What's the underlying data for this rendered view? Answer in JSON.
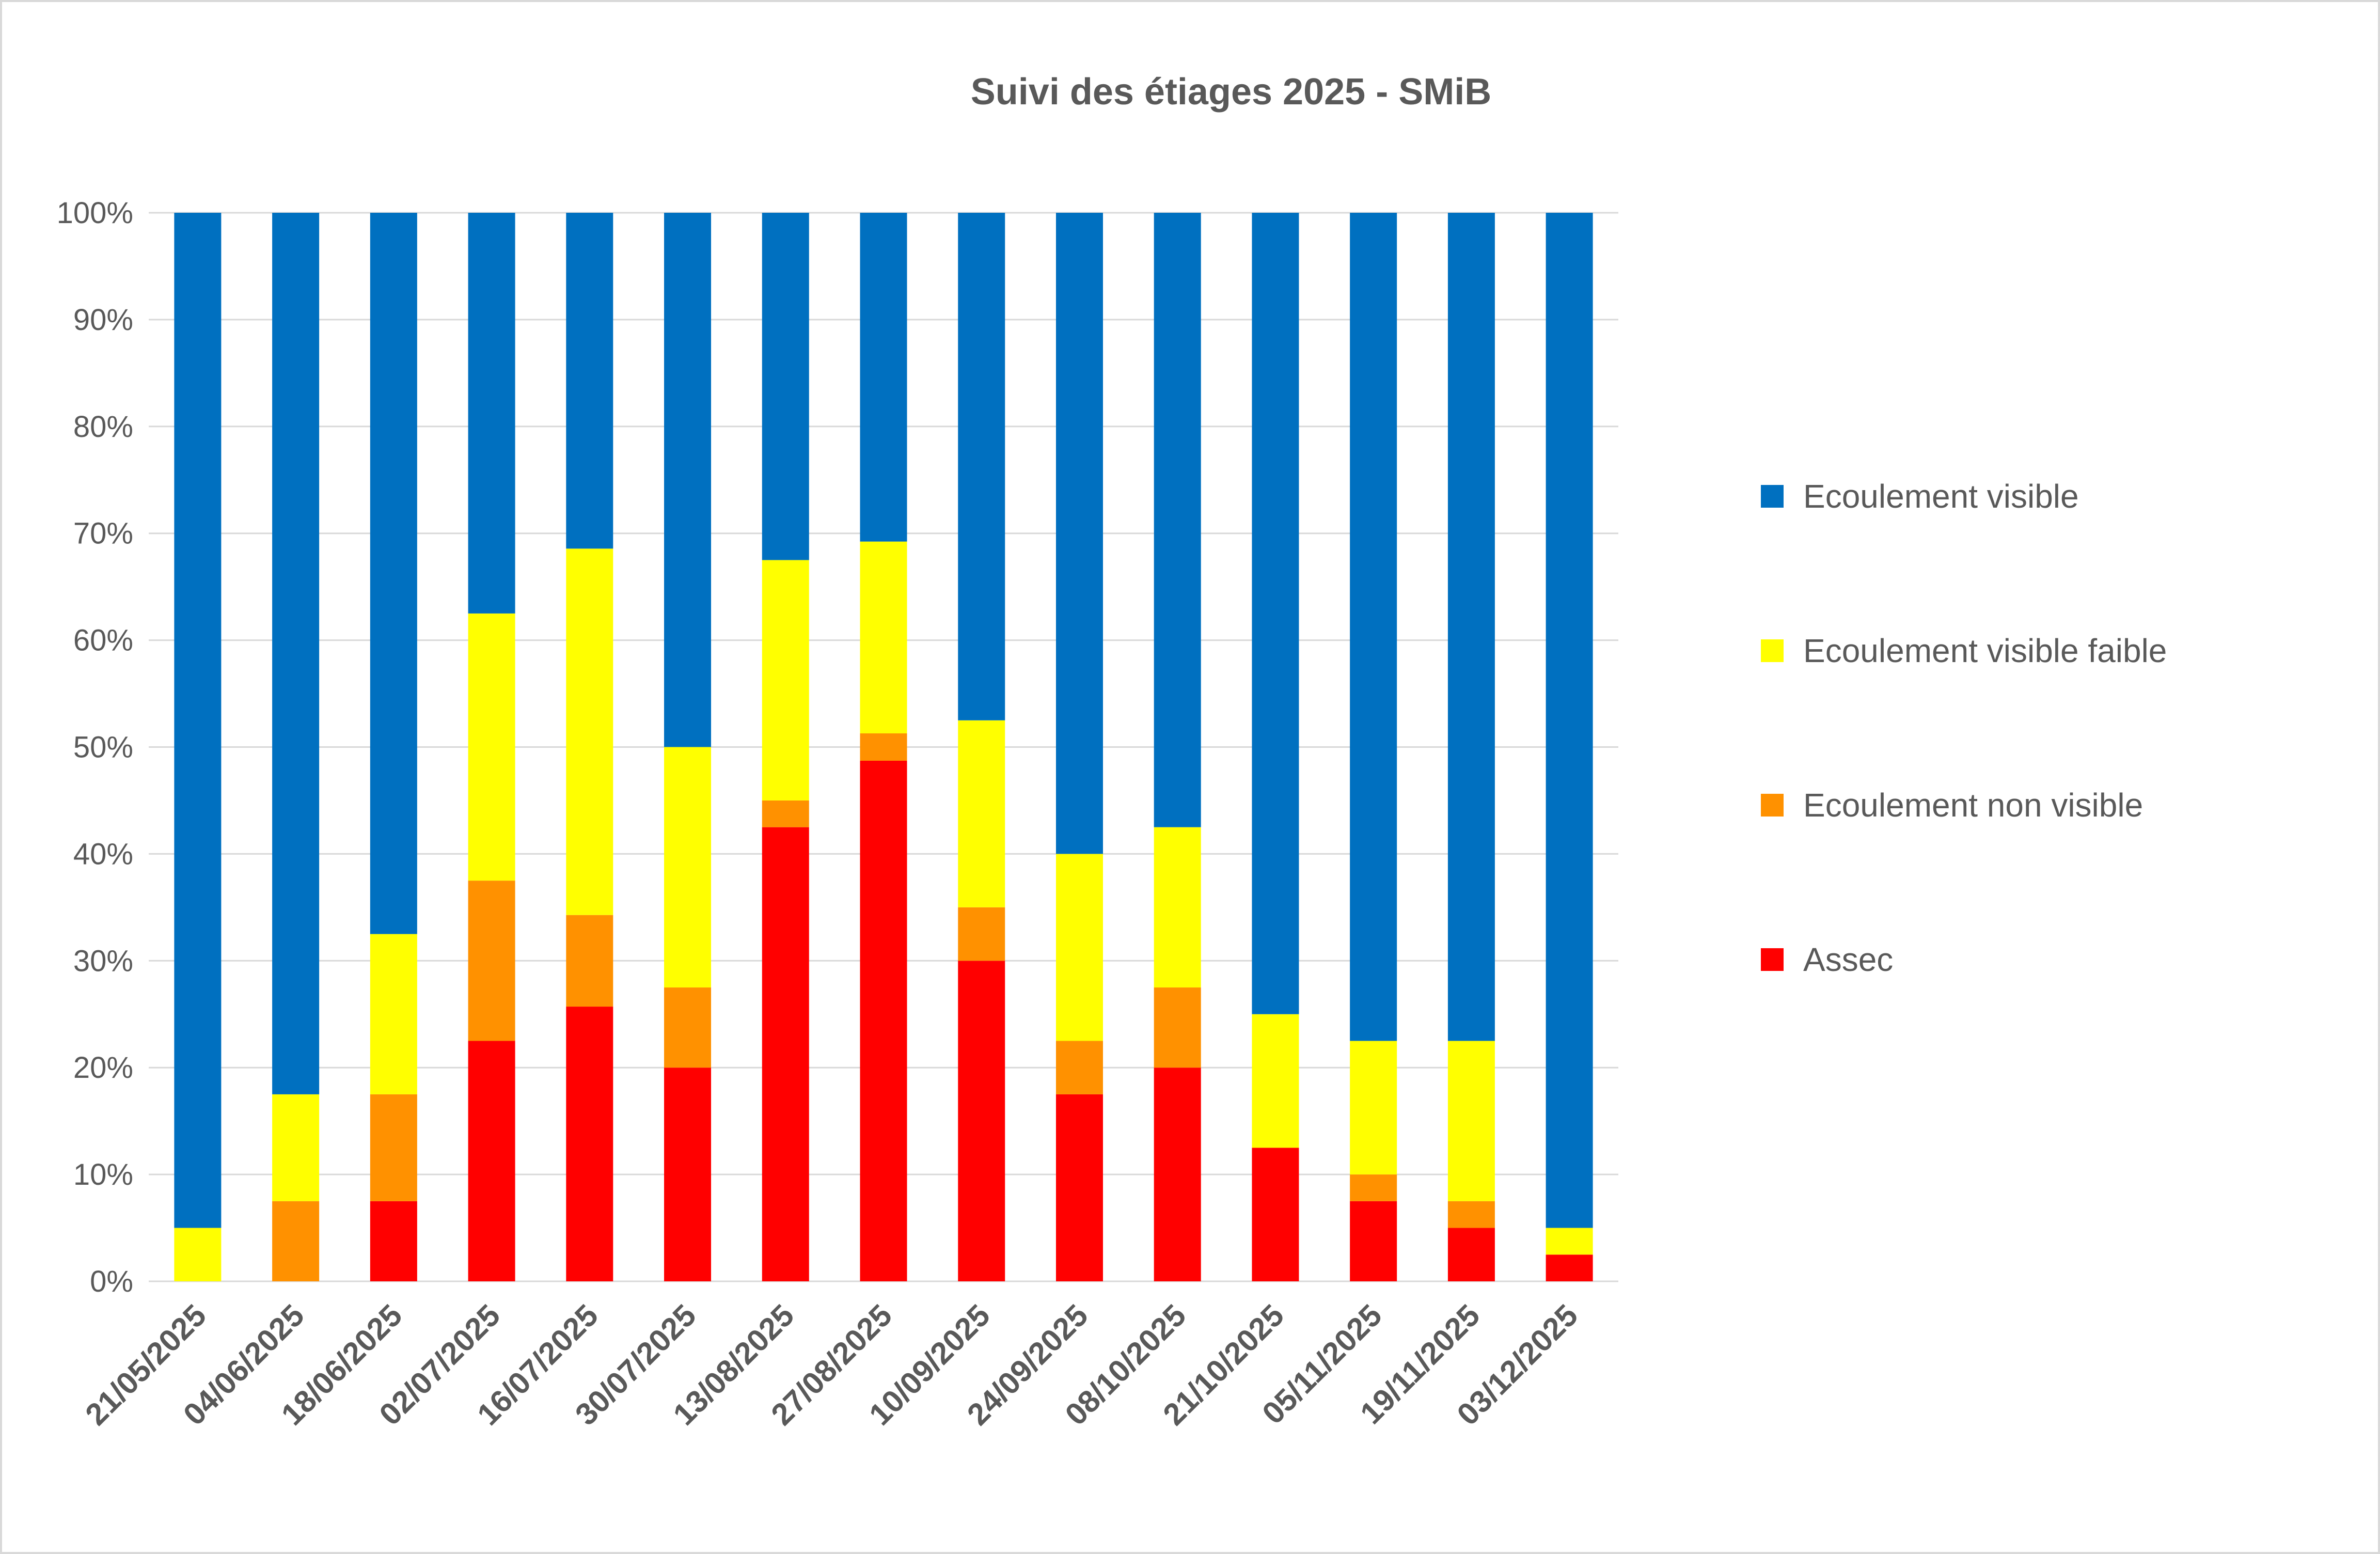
{
  "chart_data": {
    "type": "bar",
    "stacked": "percent",
    "title": "Suivi des étiages 2025 - SMiB",
    "xlabel": "",
    "ylabel": "",
    "ylim": [
      0,
      100
    ],
    "yticks": [
      "0%",
      "10%",
      "20%",
      "30%",
      "40%",
      "50%",
      "60%",
      "70%",
      "80%",
      "90%",
      "100%"
    ],
    "grid": true,
    "legend_position": "right",
    "categories": [
      "21/05/2025",
      "04/06/2025",
      "18/06/2025",
      "02/07/2025",
      "16/07/2025",
      "30/07/2025",
      "13/08/2025",
      "27/08/2025",
      "10/09/2025",
      "24/09/2025",
      "08/10/2025",
      "21/10/2025",
      "05/11/2025",
      "19/11/2025",
      "03/12/2025"
    ],
    "series": [
      {
        "name": "Assec",
        "color": "#FF0000",
        "values": [
          0,
          0,
          7.5,
          22.5,
          25.71,
          20,
          42.5,
          48.72,
          30,
          17.5,
          20,
          12.5,
          7.5,
          5,
          2.5
        ]
      },
      {
        "name": "Ecoulement non visible",
        "color": "#FF9100",
        "values": [
          0,
          7.5,
          10,
          15,
          8.57,
          7.5,
          2.5,
          2.56,
          5,
          5,
          7.5,
          0,
          2.5,
          2.5,
          0
        ]
      },
      {
        "name": "Ecoulement visible faible",
        "color": "#FFFF00",
        "values": [
          5,
          10,
          15,
          25,
          34.29,
          22.5,
          22.5,
          17.95,
          17.5,
          17.5,
          15,
          12.5,
          12.5,
          15,
          2.5
        ]
      },
      {
        "name": "Ecoulement visible",
        "color": "#0070C0",
        "values": [
          95,
          82.5,
          67.5,
          37.5,
          31.43,
          50,
          32.5,
          30.77,
          47.5,
          60,
          57.5,
          75,
          77.5,
          77.5,
          95
        ]
      }
    ]
  }
}
